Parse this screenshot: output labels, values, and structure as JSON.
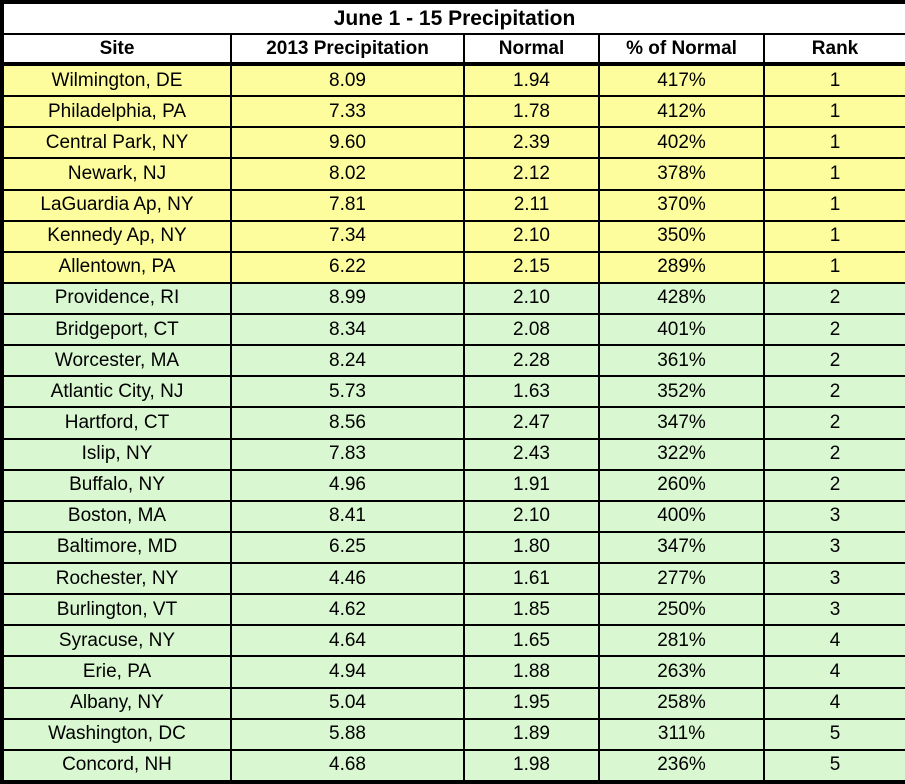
{
  "colors": {
    "rank1_row_bg": "#FDFD9E",
    "other_row_bg": "#D9F7D0",
    "border": "#000000",
    "header_bg": "#FFFFFF",
    "text": "#000000"
  },
  "table": {
    "title": "June 1 - 15 Precipitation",
    "columns": [
      "Site",
      "2013 Precipitation",
      "Normal",
      "% of Normal",
      "Rank"
    ],
    "rows": [
      {
        "site": "Wilmington, DE",
        "precip_2013": "8.09",
        "normal": "1.94",
        "pct_of_normal": "417%",
        "rank": "1"
      },
      {
        "site": "Philadelphia, PA",
        "precip_2013": "7.33",
        "normal": "1.78",
        "pct_of_normal": "412%",
        "rank": "1"
      },
      {
        "site": "Central Park, NY",
        "precip_2013": "9.60",
        "normal": "2.39",
        "pct_of_normal": "402%",
        "rank": "1"
      },
      {
        "site": "Newark, NJ",
        "precip_2013": "8.02",
        "normal": "2.12",
        "pct_of_normal": "378%",
        "rank": "1"
      },
      {
        "site": "LaGuardia Ap, NY",
        "precip_2013": "7.81",
        "normal": "2.11",
        "pct_of_normal": "370%",
        "rank": "1"
      },
      {
        "site": "Kennedy Ap, NY",
        "precip_2013": "7.34",
        "normal": "2.10",
        "pct_of_normal": "350%",
        "rank": "1"
      },
      {
        "site": "Allentown, PA",
        "precip_2013": "6.22",
        "normal": "2.15",
        "pct_of_normal": "289%",
        "rank": "1"
      },
      {
        "site": "Providence, RI",
        "precip_2013": "8.99",
        "normal": "2.10",
        "pct_of_normal": "428%",
        "rank": "2"
      },
      {
        "site": "Bridgeport, CT",
        "precip_2013": "8.34",
        "normal": "2.08",
        "pct_of_normal": "401%",
        "rank": "2"
      },
      {
        "site": "Worcester, MA",
        "precip_2013": "8.24",
        "normal": "2.28",
        "pct_of_normal": "361%",
        "rank": "2"
      },
      {
        "site": "Atlantic City, NJ",
        "precip_2013": "5.73",
        "normal": "1.63",
        "pct_of_normal": "352%",
        "rank": "2"
      },
      {
        "site": "Hartford, CT",
        "precip_2013": "8.56",
        "normal": "2.47",
        "pct_of_normal": "347%",
        "rank": "2"
      },
      {
        "site": "Islip, NY",
        "precip_2013": "7.83",
        "normal": "2.43",
        "pct_of_normal": "322%",
        "rank": "2"
      },
      {
        "site": "Buffalo, NY",
        "precip_2013": "4.96",
        "normal": "1.91",
        "pct_of_normal": "260%",
        "rank": "2"
      },
      {
        "site": "Boston, MA",
        "precip_2013": "8.41",
        "normal": "2.10",
        "pct_of_normal": "400%",
        "rank": "3"
      },
      {
        "site": "Baltimore, MD",
        "precip_2013": "6.25",
        "normal": "1.80",
        "pct_of_normal": "347%",
        "rank": "3"
      },
      {
        "site": "Rochester, NY",
        "precip_2013": "4.46",
        "normal": "1.61",
        "pct_of_normal": "277%",
        "rank": "3"
      },
      {
        "site": "Burlington, VT",
        "precip_2013": "4.62",
        "normal": "1.85",
        "pct_of_normal": "250%",
        "rank": "3"
      },
      {
        "site": "Syracuse, NY",
        "precip_2013": "4.64",
        "normal": "1.65",
        "pct_of_normal": "281%",
        "rank": "4"
      },
      {
        "site": "Erie, PA",
        "precip_2013": "4.94",
        "normal": "1.88",
        "pct_of_normal": "263%",
        "rank": "4"
      },
      {
        "site": "Albany, NY",
        "precip_2013": "5.04",
        "normal": "1.95",
        "pct_of_normal": "258%",
        "rank": "4"
      },
      {
        "site": "Washington, DC",
        "precip_2013": "5.88",
        "normal": "1.89",
        "pct_of_normal": "311%",
        "rank": "5"
      },
      {
        "site": "Concord, NH",
        "precip_2013": "4.68",
        "normal": "1.98",
        "pct_of_normal": "236%",
        "rank": "5"
      }
    ]
  },
  "chart_data": {
    "type": "table",
    "title": "June 1 - 15 Precipitation",
    "columns": [
      "Site",
      "2013 Precipitation",
      "Normal",
      "% of Normal",
      "Rank"
    ],
    "rows": [
      [
        "Wilmington, DE",
        8.09,
        1.94,
        "417%",
        1
      ],
      [
        "Philadelphia, PA",
        7.33,
        1.78,
        "412%",
        1
      ],
      [
        "Central Park, NY",
        9.6,
        2.39,
        "402%",
        1
      ],
      [
        "Newark, NJ",
        8.02,
        2.12,
        "378%",
        1
      ],
      [
        "LaGuardia Ap, NY",
        7.81,
        2.11,
        "370%",
        1
      ],
      [
        "Kennedy Ap, NY",
        7.34,
        2.1,
        "350%",
        1
      ],
      [
        "Allentown, PA",
        6.22,
        2.15,
        "289%",
        1
      ],
      [
        "Providence, RI",
        8.99,
        2.1,
        "428%",
        2
      ],
      [
        "Bridgeport, CT",
        8.34,
        2.08,
        "401%",
        2
      ],
      [
        "Worcester, MA",
        8.24,
        2.28,
        "361%",
        2
      ],
      [
        "Atlantic City, NJ",
        5.73,
        1.63,
        "352%",
        2
      ],
      [
        "Hartford, CT",
        8.56,
        2.47,
        "347%",
        2
      ],
      [
        "Islip, NY",
        7.83,
        2.43,
        "322%",
        2
      ],
      [
        "Buffalo, NY",
        4.96,
        1.91,
        "260%",
        2
      ],
      [
        "Boston, MA",
        8.41,
        2.1,
        "400%",
        3
      ],
      [
        "Baltimore, MD",
        6.25,
        1.8,
        "347%",
        3
      ],
      [
        "Rochester, NY",
        4.46,
        1.61,
        "277%",
        3
      ],
      [
        "Burlington, VT",
        4.62,
        1.85,
        "250%",
        3
      ],
      [
        "Syracuse, NY",
        4.64,
        1.65,
        "281%",
        4
      ],
      [
        "Erie, PA",
        4.94,
        1.88,
        "263%",
        4
      ],
      [
        "Albany, NY",
        5.04,
        1.95,
        "258%",
        4
      ],
      [
        "Washington, DC",
        5.88,
        1.89,
        "311%",
        5
      ],
      [
        "Concord, NH",
        4.68,
        1.98,
        "236%",
        5
      ]
    ],
    "layout_hints": {
      "rank1_rows_highlight": "#FDFD9E",
      "rank2_to_5_rows_highlight": "#D9F7D0",
      "grid": true,
      "all_cells_centered": true
    }
  }
}
